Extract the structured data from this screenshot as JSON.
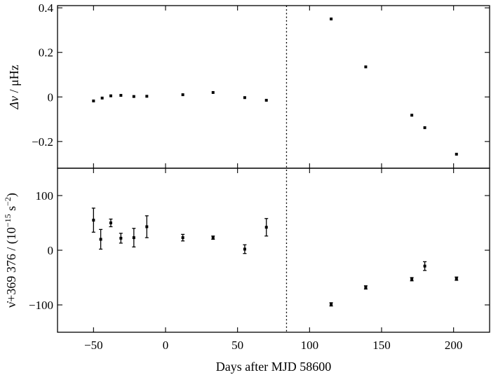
{
  "chart_data": {
    "type": "scatter",
    "xlabel": "Days after MJD 58600",
    "xlim": [
      -75,
      225
    ],
    "x_ticks": [
      -50,
      0,
      50,
      100,
      150,
      200
    ],
    "x_tick_labels": [
      "−50",
      "0",
      "50",
      "100",
      "150",
      "200"
    ],
    "glitch_epoch": 84,
    "panels": [
      {
        "id": "top",
        "ylabel_main": "Δν",
        "ylabel_units": " / μHz",
        "ylim": [
          -0.32,
          0.41
        ],
        "y_ticks": [
          -0.2,
          0,
          0.2,
          0.4
        ],
        "y_tick_labels": [
          "−0.2",
          "0",
          "0.2",
          "0.4"
        ],
        "points": [
          {
            "x": -50,
            "y": -0.018
          },
          {
            "x": -44,
            "y": -0.005
          },
          {
            "x": -38,
            "y": 0.005
          },
          {
            "x": -31,
            "y": 0.007
          },
          {
            "x": -22,
            "y": 0.002
          },
          {
            "x": -13,
            "y": 0.003
          },
          {
            "x": 12,
            "y": 0.01
          },
          {
            "x": 33,
            "y": 0.02
          },
          {
            "x": 55,
            "y": -0.003
          },
          {
            "x": 70,
            "y": -0.015
          },
          {
            "x": 115,
            "y": 0.35
          },
          {
            "x": 139,
            "y": 0.135
          },
          {
            "x": 171,
            "y": -0.082
          },
          {
            "x": 180,
            "y": -0.138
          },
          {
            "x": 202,
            "y": -0.257
          }
        ]
      },
      {
        "id": "bottom",
        "ylabel_main": "ν̇+369 376 / (10",
        "ylabel_sup": "−15",
        "ylabel_mid": " s",
        "ylabel_sup2": "−2",
        "ylabel_end": ")",
        "ylim": [
          -150,
          150
        ],
        "y_ticks": [
          -100,
          0,
          100
        ],
        "y_tick_labels": [
          "−100",
          "0",
          "100"
        ],
        "points": [
          {
            "x": -50,
            "y": 55,
            "err": 22
          },
          {
            "x": -45,
            "y": 20,
            "err": 18
          },
          {
            "x": -38,
            "y": 50,
            "err": 7
          },
          {
            "x": -31,
            "y": 22,
            "err": 9
          },
          {
            "x": -22,
            "y": 23,
            "err": 17
          },
          {
            "x": -13,
            "y": 43,
            "err": 20
          },
          {
            "x": 12,
            "y": 23,
            "err": 6
          },
          {
            "x": 33,
            "y": 23,
            "err": 3
          },
          {
            "x": 55,
            "y": 2,
            "err": 8
          },
          {
            "x": 70,
            "y": 42,
            "err": 16
          },
          {
            "x": 115,
            "y": -99,
            "err": 3
          },
          {
            "x": 139,
            "y": -68,
            "err": 3
          },
          {
            "x": 171,
            "y": -53,
            "err": 3
          },
          {
            "x": 180,
            "y": -29,
            "err": 8
          },
          {
            "x": 202,
            "y": -52,
            "err": 3
          }
        ]
      }
    ]
  }
}
